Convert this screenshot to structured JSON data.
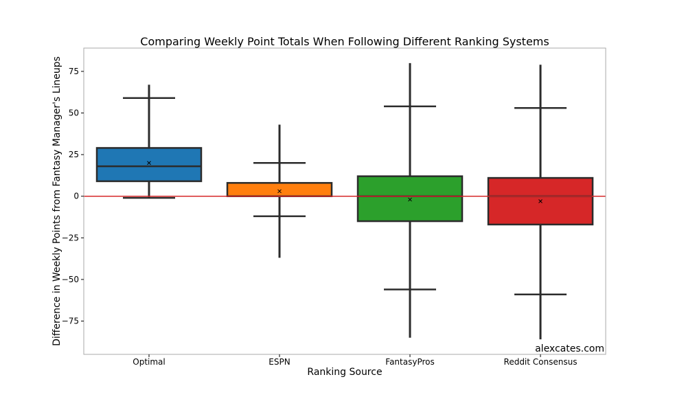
{
  "chart_data": {
    "type": "box",
    "title": "Comparing Weekly Point Totals When Following Different Ranking Systems",
    "xlabel": "Ranking Source",
    "ylabel": "Difference in Weekly Points from Fantasy Manager's Lineups",
    "categories": [
      "Optimal",
      "ESPN",
      "FantasyPros",
      "Reddit Consensus"
    ],
    "ylim": [
      -95,
      89
    ],
    "yticks": [
      -75,
      -50,
      -25,
      0,
      25,
      50,
      75
    ],
    "ytick_labels": [
      "−75",
      "−50",
      "−25",
      "0",
      "25",
      "50",
      "75"
    ],
    "reference_line": {
      "y": 0,
      "color": "#d62728"
    },
    "watermark": "alexcates.com",
    "grid": false,
    "boxes": [
      {
        "category": "Optimal",
        "color": "#1f77b4",
        "whisker_low": -1,
        "q1": 9,
        "median": 18,
        "q3": 29,
        "whisker_high": 59,
        "mean": 20,
        "flier_low": -1,
        "flier_high": 67
      },
      {
        "category": "ESPN",
        "color": "#ff7f0e",
        "whisker_low": -12,
        "q1": 0,
        "median": 0,
        "q3": 8,
        "whisker_high": 20,
        "mean": 3,
        "flier_low": -37,
        "flier_high": 43
      },
      {
        "category": "FantasyPros",
        "color": "#2ca02c",
        "whisker_low": -56,
        "q1": -15,
        "median": 0,
        "q3": 12,
        "whisker_high": 54,
        "mean": -2,
        "flier_low": -85,
        "flier_high": 80
      },
      {
        "category": "Reddit Consensus",
        "color": "#d62728",
        "whisker_low": -59,
        "q1": -17,
        "median": 0,
        "q3": 11,
        "whisker_high": 53,
        "mean": -3,
        "flier_low": -86,
        "flier_high": 79
      }
    ]
  }
}
